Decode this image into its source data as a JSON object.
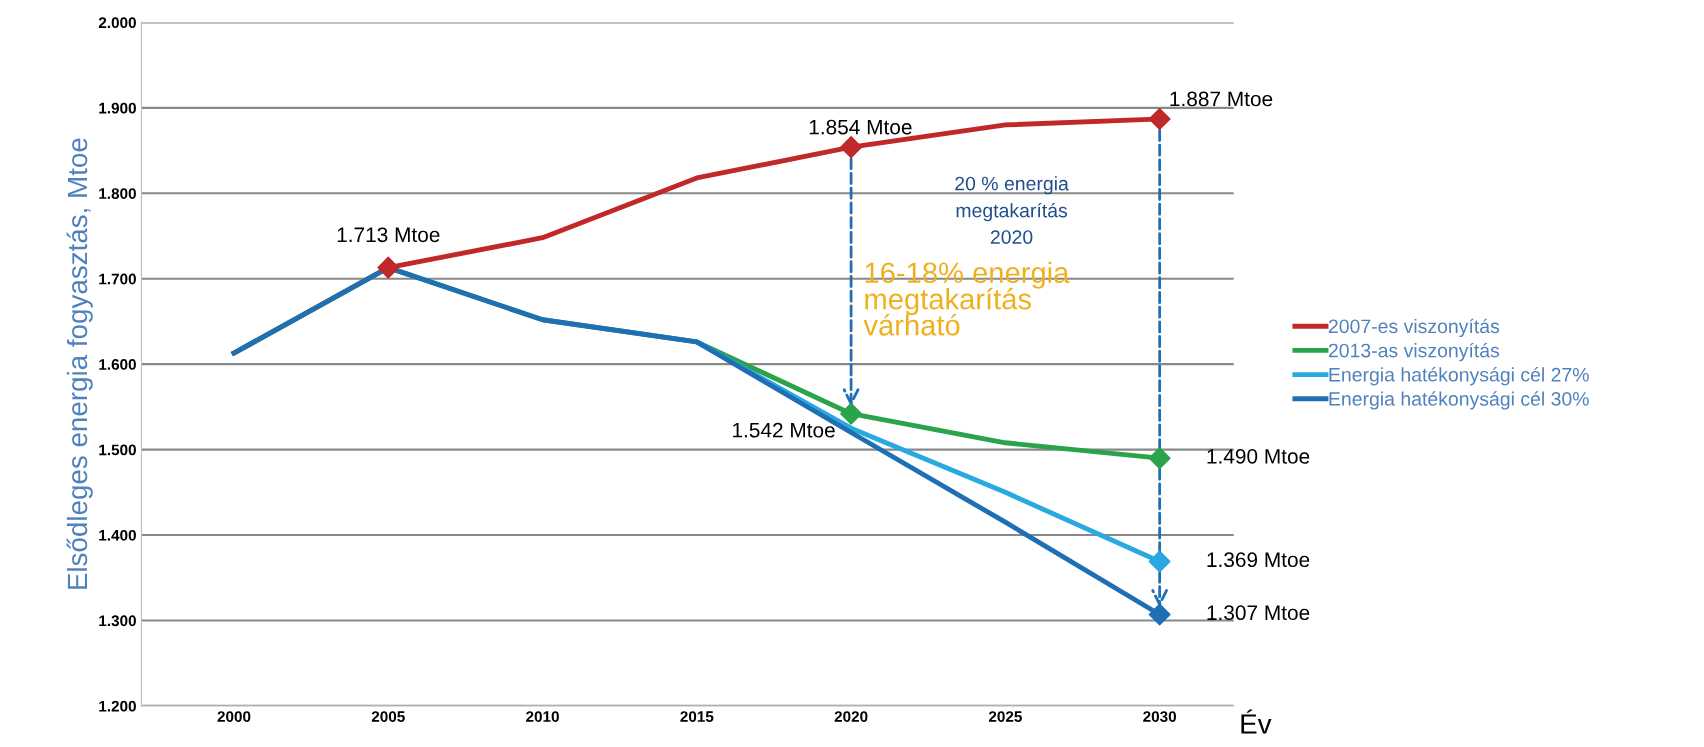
{
  "chart_data": {
    "type": "line",
    "xlabel": "Év",
    "ylabel": "Elsődleges energia fogyasztás, Mtoe",
    "x": [
      2000,
      2005,
      2010,
      2015,
      2020,
      2025,
      2030
    ],
    "series": [
      {
        "name": "2007-es viszonyítás",
        "color": "#c0282a",
        "values": [
          1613,
          1713,
          1748,
          1818,
          1854,
          1880,
          1887
        ]
      },
      {
        "name": "2013-as viszonyítás",
        "color": "#2aa34a",
        "values": [
          1613,
          1713,
          1652,
          1626,
          1542,
          1508,
          1490
        ]
      },
      {
        "name": "Energia hatékonysági cél 27%",
        "color": "#29a9e0",
        "values": [
          null,
          null,
          null,
          1626,
          1525,
          1450,
          1369
        ]
      },
      {
        "name": "Energia hatékonysági cél 30%",
        "color": "#1f6fb5",
        "values": [
          1613,
          1713,
          1652,
          1626,
          1520,
          1415,
          1307
        ]
      },
      {
        "type": "scatter",
        "marker": "diamond",
        "color": "#c0282a",
        "x": [
          2005,
          2020,
          2030
        ],
        "values": [
          1713,
          1854,
          1887
        ]
      },
      {
        "type": "scatter",
        "marker": "diamond",
        "color": "#2aa34a",
        "x": [
          2020,
          2030
        ],
        "values": [
          1542,
          1490
        ]
      },
      {
        "type": "scatter",
        "marker": "diamond",
        "color": "#29a9e0",
        "x": [
          2030
        ],
        "values": [
          1369
        ]
      },
      {
        "type": "scatter",
        "marker": "diamond",
        "color": "#1f6fb5",
        "x": [
          2030
        ],
        "values": [
          1307
        ]
      }
    ],
    "xlim": [
      1997,
      2032.4
    ],
    "xticks": [
      2000,
      2005,
      2010,
      2015,
      2020,
      2025,
      2030
    ],
    "ylim": [
      1200,
      2000
    ],
    "yticks": [
      {
        "value": 1200,
        "label": "1.200"
      },
      {
        "value": 1300,
        "label": "1.300"
      },
      {
        "value": 1400,
        "label": "1.400"
      },
      {
        "value": 1500,
        "label": "1.500"
      },
      {
        "value": 1600,
        "label": "1.600"
      },
      {
        "value": 1700,
        "label": "1.700"
      },
      {
        "value": 1800,
        "label": "1.800"
      },
      {
        "value": 1900,
        "label": "1.900"
      },
      {
        "value": 2000,
        "label": "2.000"
      }
    ],
    "grid": "y",
    "legend": "right",
    "annotations": [
      {
        "text": "1.713 Mtoe",
        "x": 2005,
        "y": 1713
      },
      {
        "text": "1.854 Mtoe",
        "x": 2020,
        "y": 1854
      },
      {
        "text": "1.887 Mtoe",
        "x": 2030,
        "y": 1887
      },
      {
        "text": "1.542 Mtoe",
        "x": 2020,
        "y": 1542
      },
      {
        "text": "1.490 Mtoe",
        "x": 2030,
        "y": 1490
      },
      {
        "text": "1.369 Mtoe",
        "x": 2030,
        "y": 1369
      },
      {
        "text": "1.307 Mtoe",
        "x": 2030,
        "y": 1307
      },
      "20 % energia\nmegtakarítás\n2020",
      "16-18% energia\nmegtakarítás\nvárható"
    ]
  }
}
